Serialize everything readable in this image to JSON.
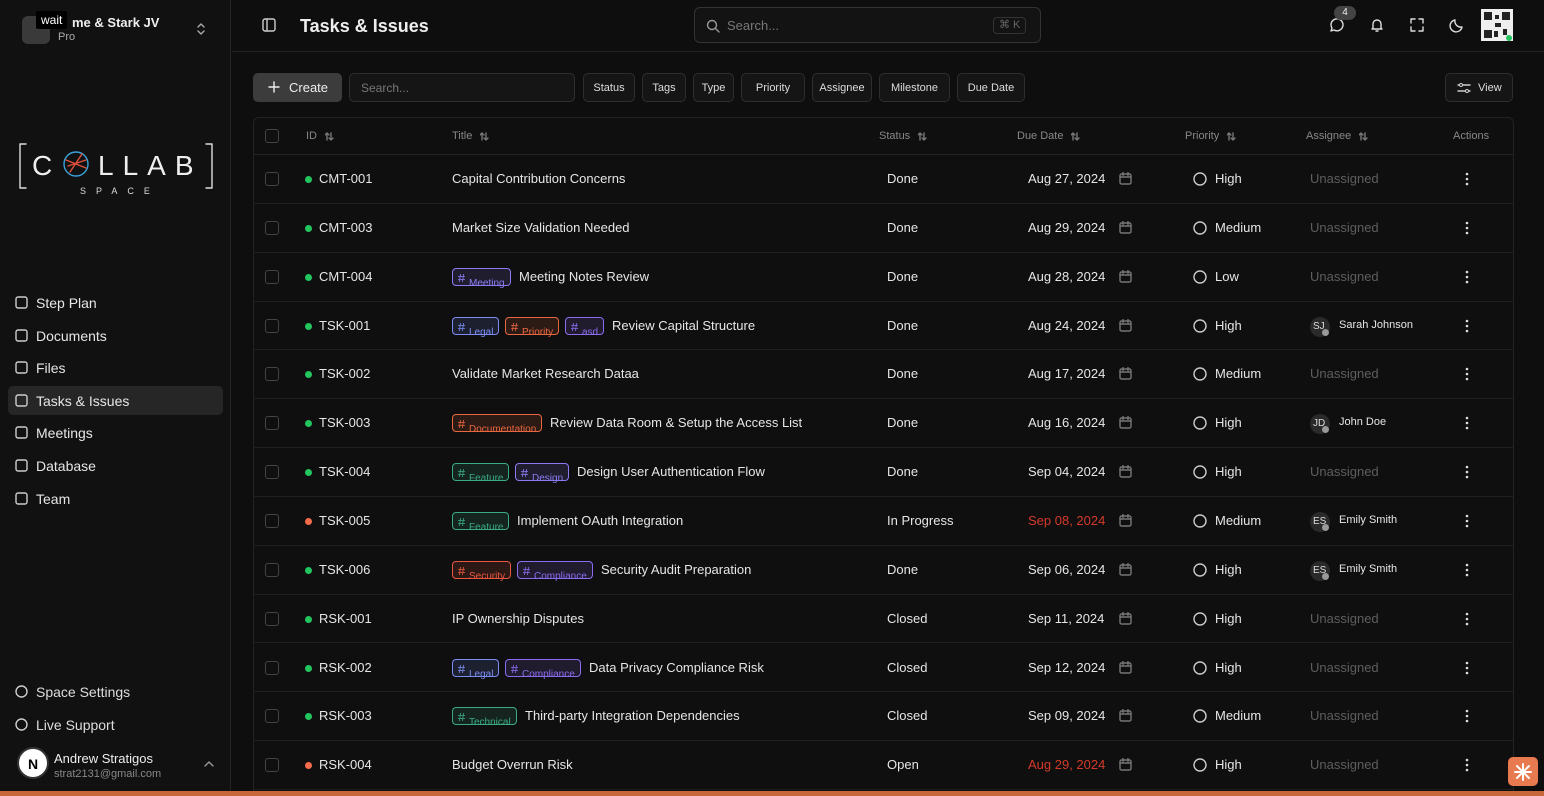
{
  "tooltip": "wait",
  "workspace": {
    "name": "me & Stark JV",
    "plan": "Pro"
  },
  "logo": {
    "left": "C",
    "right": "LLAB",
    "sub": "SPACE"
  },
  "nav": [
    {
      "label": "Step Plan"
    },
    {
      "label": "Documents"
    },
    {
      "label": "Files"
    },
    {
      "label": "Tasks & Issues",
      "active": true
    },
    {
      "label": "Meetings"
    },
    {
      "label": "Database"
    },
    {
      "label": "Team"
    }
  ],
  "support_nav": [
    "Space Settings",
    "Live Support"
  ],
  "user": {
    "avatar": "N",
    "name": "Andrew Stratigos",
    "email": "strat2131@gmail.com"
  },
  "header": {
    "title": "Tasks & Issues",
    "search": "Search...",
    "shortcut": "⌘ K",
    "badge": "4"
  },
  "toolbar": {
    "create": "Create",
    "search": "Search...",
    "filters": [
      "Status",
      "Tags",
      "Type",
      "Priority",
      "Assignee",
      "Milestone",
      "Due Date"
    ],
    "view": "View"
  },
  "table": {
    "columns": [
      "ID",
      "Title",
      "Status",
      "Due Date",
      "Priority",
      "Assignee",
      "Actions"
    ],
    "rows": [
      {
        "id": "CMT-001",
        "dot": "#22c55e",
        "tags": [],
        "title": "Capital Contribution Concerns",
        "status": "Done",
        "due": "Aug 27, 2024",
        "overdue": false,
        "priority": "High",
        "assignee": "Unassigned"
      },
      {
        "id": "CMT-003",
        "dot": "#22c55e",
        "tags": [],
        "title": "Market Size Validation Needed",
        "status": "Done",
        "due": "Aug 29, 2024",
        "overdue": false,
        "priority": "Medium",
        "assignee": "Unassigned"
      },
      {
        "id": "CMT-004",
        "dot": "#22c55e",
        "tags": [
          {
            "label": "Meeting",
            "color": "#8b7cf6"
          }
        ],
        "title": "Meeting Notes Review",
        "status": "Done",
        "due": "Aug 28, 2024",
        "overdue": false,
        "priority": "Low",
        "assignee": "Unassigned"
      },
      {
        "id": "TSK-001",
        "dot": "#22c55e",
        "tags": [
          {
            "label": "Legal",
            "color": "#7b8cf6"
          },
          {
            "label": "Priority",
            "color": "#e8673f"
          },
          {
            "label": "asd",
            "color": "#8b6cf0"
          }
        ],
        "title": "Review Capital Structure",
        "status": "Done",
        "due": "Aug 24, 2024",
        "overdue": false,
        "priority": "High",
        "assignee": {
          "initials": "SJ",
          "name": "Sarah Johnson"
        }
      },
      {
        "id": "TSK-002",
        "dot": "#22c55e",
        "tags": [],
        "title": "Validate Market Research Dataa",
        "status": "Done",
        "due": "Aug 17, 2024",
        "overdue": false,
        "priority": "Medium",
        "assignee": "Unassigned"
      },
      {
        "id": "TSK-003",
        "dot": "#22c55e",
        "tags": [
          {
            "label": "Documentation",
            "color": "#e8673f"
          }
        ],
        "title": "Review Data Room & Setup the Access List",
        "status": "Done",
        "due": "Aug 16, 2024",
        "overdue": false,
        "priority": "High",
        "assignee": {
          "initials": "JD",
          "name": "John Doe"
        }
      },
      {
        "id": "TSK-004",
        "dot": "#22c55e",
        "tags": [
          {
            "label": "Feature",
            "color": "#3aaa82"
          },
          {
            "label": "Design",
            "color": "#8b7cf6"
          }
        ],
        "title": "Design User Authentication Flow",
        "status": "Done",
        "due": "Sep 04, 2024",
        "overdue": false,
        "priority": "High",
        "assignee": "Unassigned"
      },
      {
        "id": "TSK-005",
        "dot": "#f26b4a",
        "tags": [
          {
            "label": "Feature",
            "color": "#3aaa82"
          }
        ],
        "title": "Implement OAuth Integration",
        "status": "In Progress",
        "due": "Sep 08, 2024",
        "overdue": true,
        "priority": "Medium",
        "assignee": {
          "initials": "ES",
          "name": "Emily Smith"
        }
      },
      {
        "id": "TSK-006",
        "dot": "#22c55e",
        "tags": [
          {
            "label": "Security",
            "color": "#e8573f"
          },
          {
            "label": "Compliance",
            "color": "#8b6cf0"
          }
        ],
        "title": "Security Audit Preparation",
        "status": "Done",
        "due": "Sep 06, 2024",
        "overdue": false,
        "priority": "High",
        "assignee": {
          "initials": "ES",
          "name": "Emily Smith"
        }
      },
      {
        "id": "RSK-001",
        "dot": "#22c55e",
        "tags": [],
        "title": "IP Ownership Disputes",
        "status": "Closed",
        "due": "Sep 11, 2024",
        "overdue": false,
        "priority": "High",
        "assignee": "Unassigned"
      },
      {
        "id": "RSK-002",
        "dot": "#22c55e",
        "tags": [
          {
            "label": "Legal",
            "color": "#7b8cf6"
          },
          {
            "label": "Compliance",
            "color": "#8b6cf0"
          }
        ],
        "title": "Data Privacy Compliance Risk",
        "status": "Closed",
        "due": "Sep 12, 2024",
        "overdue": false,
        "priority": "High",
        "assignee": "Unassigned"
      },
      {
        "id": "RSK-003",
        "dot": "#22c55e",
        "tags": [
          {
            "label": "Technical",
            "color": "#3aaa82"
          }
        ],
        "title": "Third-party Integration Dependencies",
        "status": "Closed",
        "due": "Sep 09, 2024",
        "overdue": false,
        "priority": "Medium",
        "assignee": "Unassigned"
      },
      {
        "id": "RSK-004",
        "dot": "#f26b4a",
        "tags": [],
        "title": "Budget Overrun Risk",
        "status": "Open",
        "due": "Aug 29, 2024",
        "overdue": true,
        "priority": "High",
        "assignee": "Unassigned"
      }
    ]
  }
}
